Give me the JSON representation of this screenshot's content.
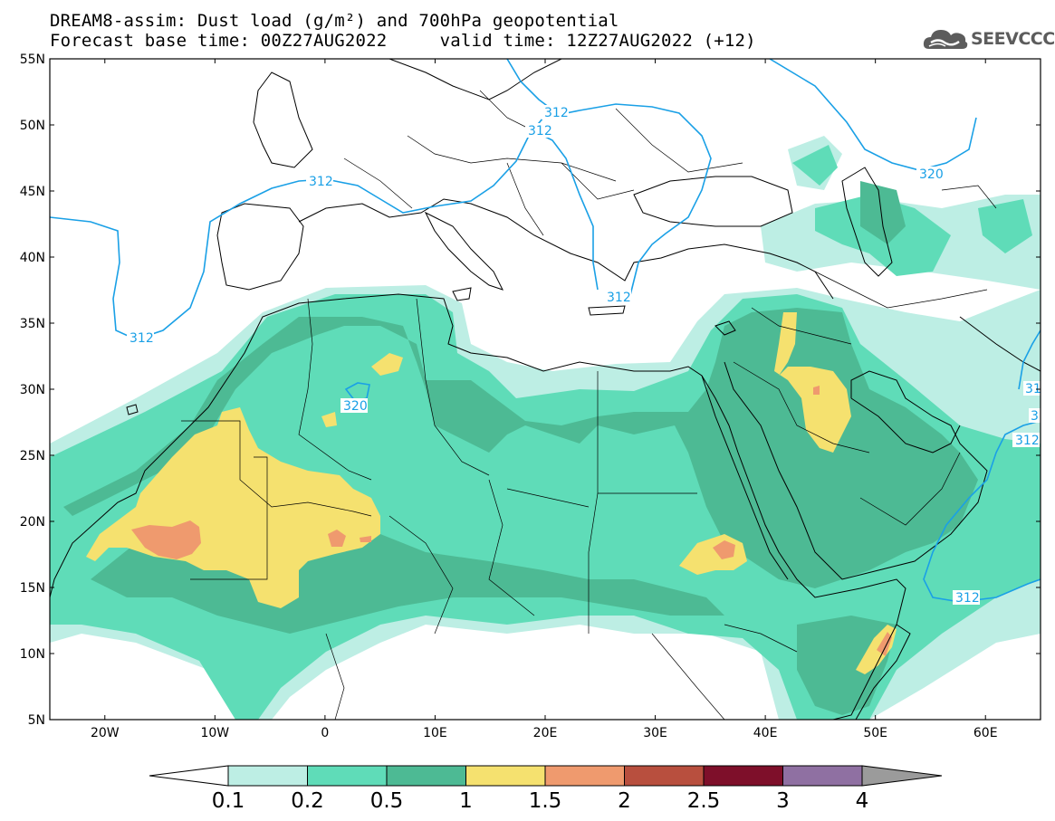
{
  "header": {
    "title_line1": "DREAM8-assim: Dust load (g/m²) and 700hPa geopotential",
    "title_line2": "Forecast base time: 00Z27AUG2022     valid time: 12Z27AUG2022 (+12)"
  },
  "logo": {
    "text": "SEEVCCC",
    "icon": "cloud-logo-icon"
  },
  "map": {
    "lon_range": [
      -25,
      65
    ],
    "lat_range": [
      5,
      55
    ],
    "lat_ticks": [
      "55N",
      "50N",
      "45N",
      "40N",
      "35N",
      "30N",
      "25N",
      "20N",
      "15N",
      "10N",
      "5N"
    ],
    "lon_ticks": [
      "20W",
      "10W",
      "0",
      "10E",
      "20E",
      "30E",
      "40E",
      "50E",
      "60E"
    ],
    "contour_labels": [
      "312",
      "312",
      "312",
      "312",
      "312",
      "320",
      "320",
      "312",
      "312",
      "31",
      "3",
      "312"
    ]
  },
  "colorbar": {
    "labels": [
      "0.1",
      "0.2",
      "0.5",
      "1",
      "1.5",
      "2",
      "2.5",
      "3",
      "4"
    ],
    "colors": [
      "#bdeee4",
      "#5fdcb8",
      "#4dba94",
      "#f5e16f",
      "#ef9a6e",
      "#b84f3e",
      "#7e0f2a",
      "#8f70a2"
    ],
    "under_color": "#ffffff",
    "over_color": "#9b9b9b"
  },
  "chart_data": {
    "type": "heatmap",
    "title": "DREAM8-assim: Dust load (g/m²) and 700hPa geopotential",
    "levels": [
      0.1,
      0.2,
      0.5,
      1,
      1.5,
      2,
      2.5,
      3,
      4
    ],
    "units": "g/m²",
    "contour_variable": "700hPa geopotential",
    "contour_values": [
      312,
      320
    ]
  }
}
